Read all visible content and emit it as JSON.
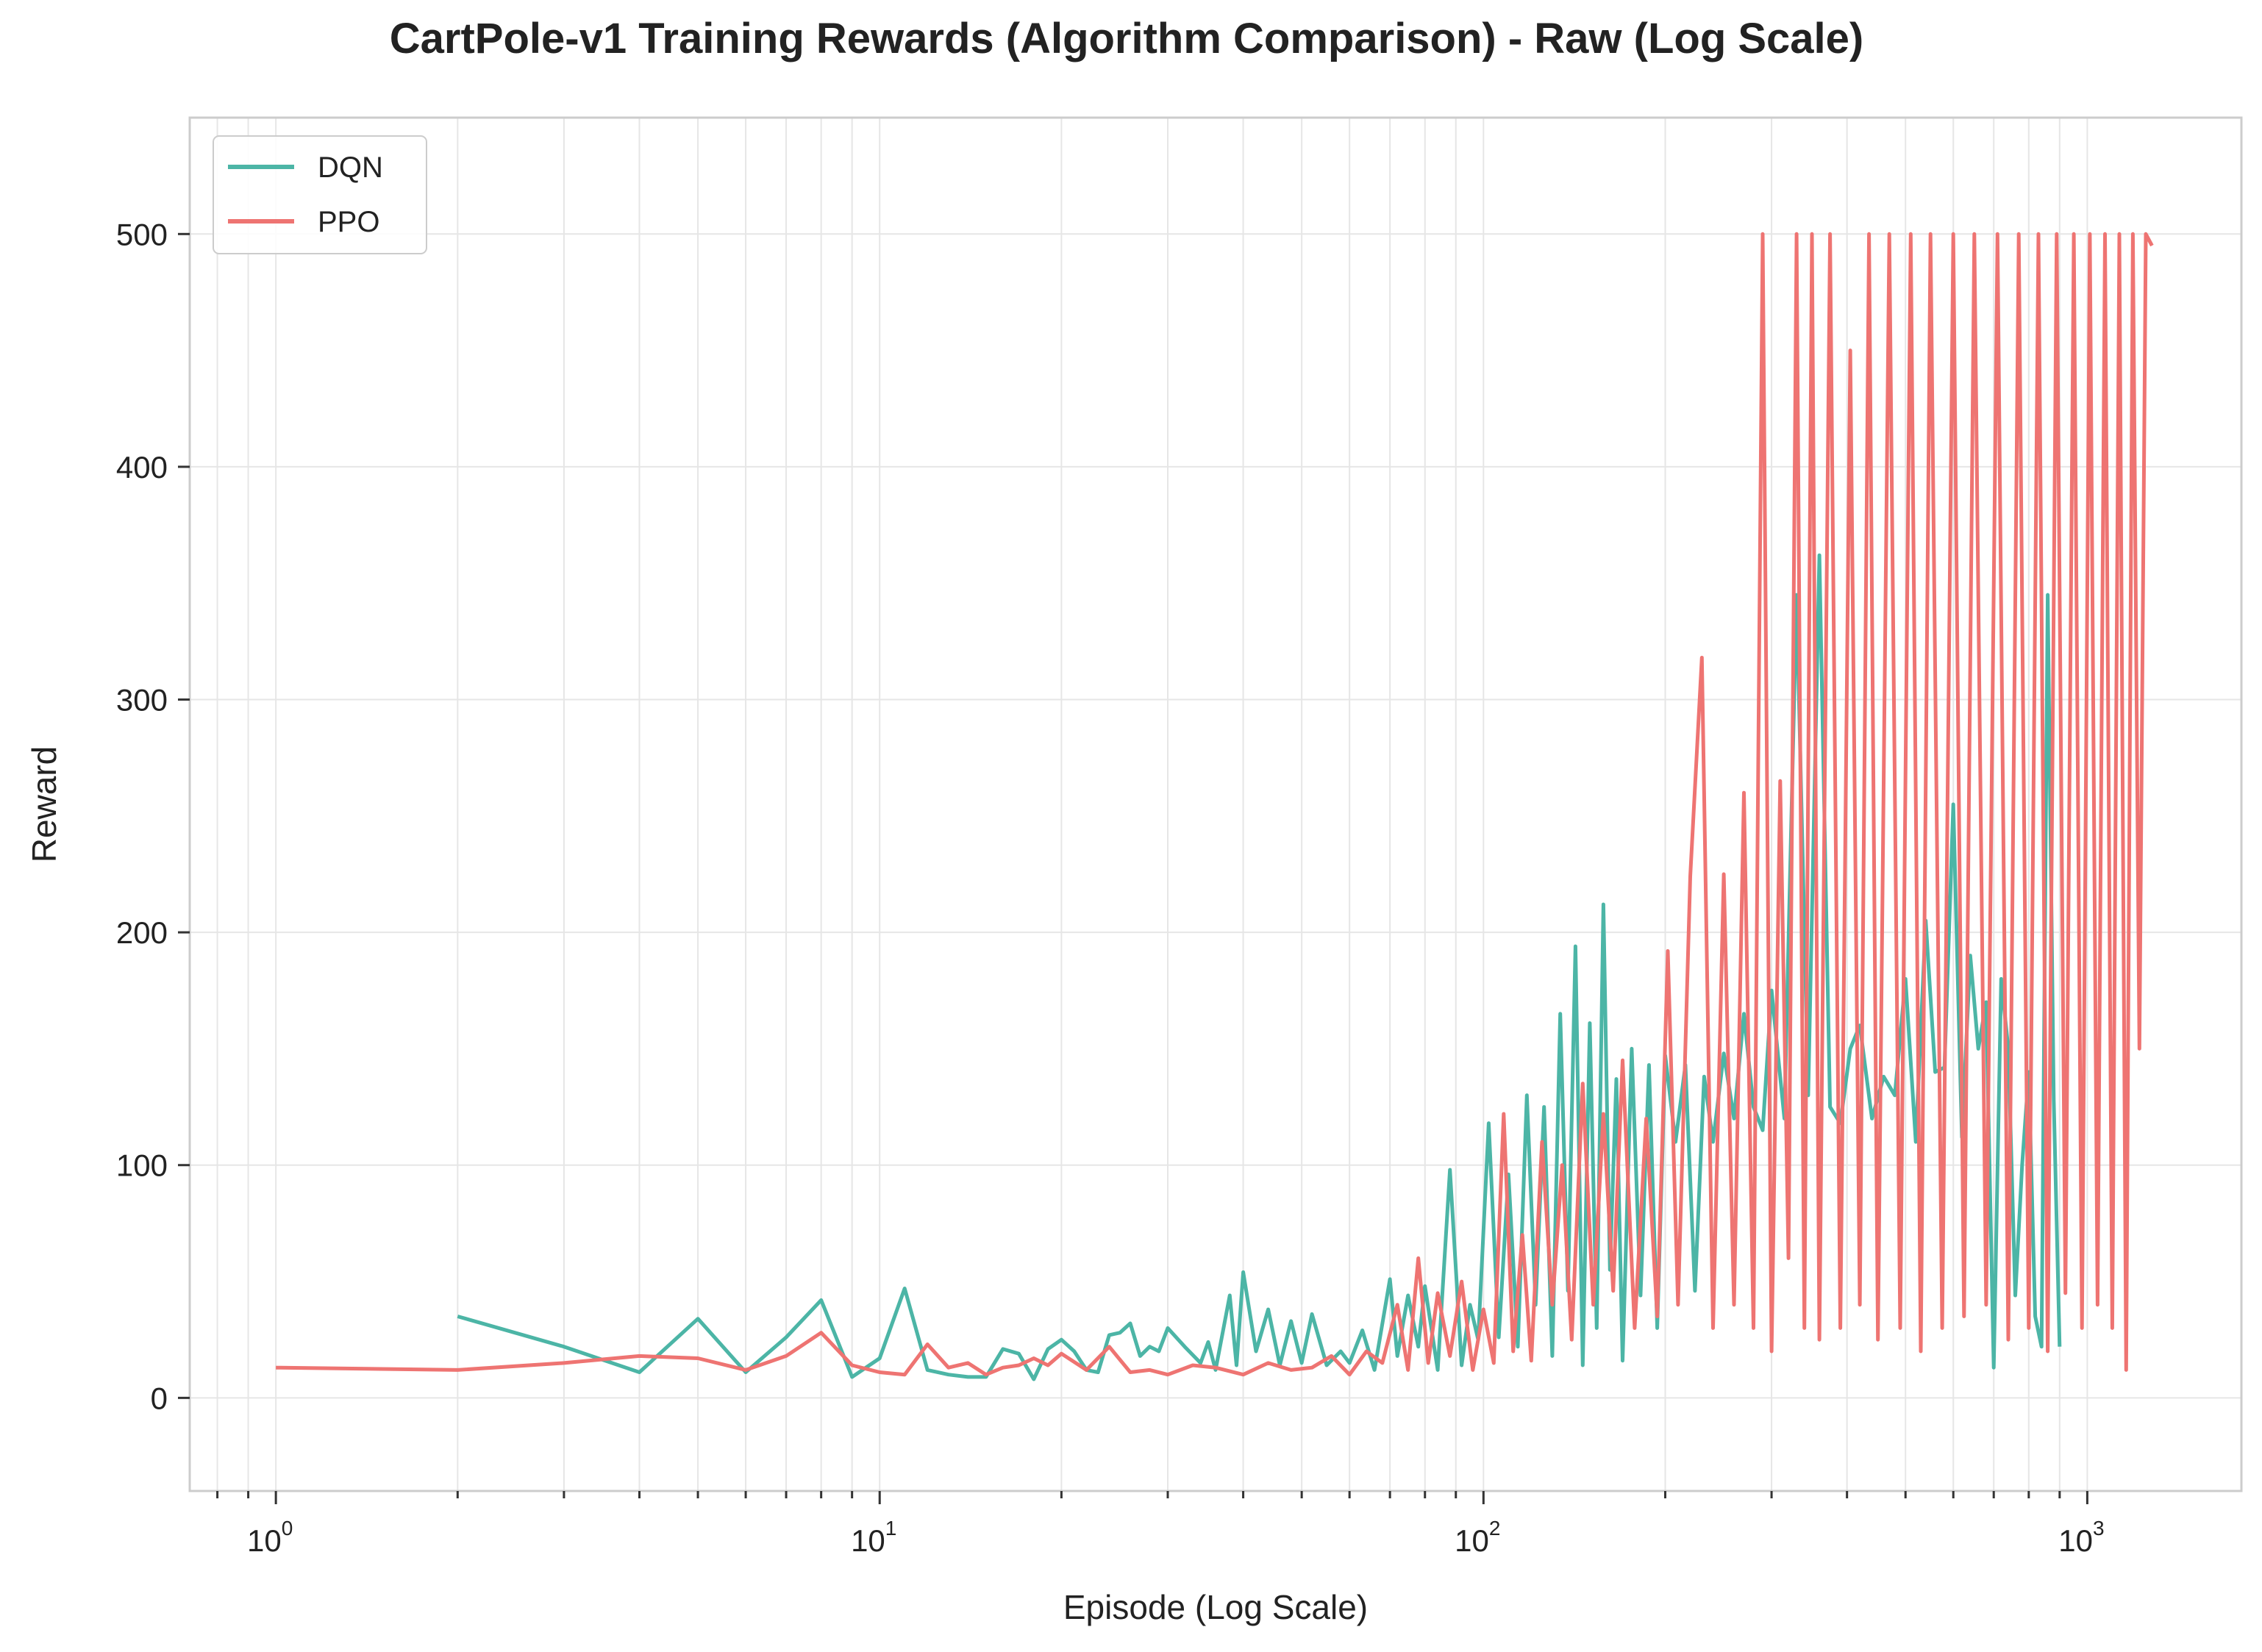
{
  "chart_data": {
    "type": "line",
    "title": "CartPole-v1 Training Rewards (Algorithm Comparison) - Raw (Log Scale)",
    "xlabel": "Episode (Log Scale)",
    "ylabel": "Reward",
    "xscale": "log",
    "xlim": [
      0.72,
      1800
    ],
    "ylim": [
      -40,
      550
    ],
    "yticks": [
      0,
      100,
      200,
      300,
      400,
      500
    ],
    "xticks": [
      {
        "base": "10",
        "exp": "0",
        "value": 1
      },
      {
        "base": "10",
        "exp": "1",
        "value": 10
      },
      {
        "base": "10",
        "exp": "2",
        "value": 100
      },
      {
        "base": "10",
        "exp": "3",
        "value": 1000
      }
    ],
    "grid": true,
    "legend_position": "top-left",
    "series": [
      {
        "name": "DQN",
        "color": "#4cb5a6",
        "x": [
          2,
          3,
          4,
          5,
          6,
          7,
          8,
          9,
          10,
          11,
          12,
          13,
          14,
          15,
          16,
          17,
          18,
          19,
          20,
          21,
          22,
          23,
          24,
          25,
          26,
          27,
          28,
          29,
          30,
          32,
          34,
          35,
          36,
          38,
          39,
          40,
          42,
          44,
          46,
          48,
          50,
          52,
          55,
          58,
          60,
          63,
          66,
          70,
          72,
          75,
          78,
          80,
          84,
          88,
          92,
          95,
          98,
          102,
          106,
          110,
          114,
          118,
          122,
          126,
          130,
          134,
          138,
          142,
          146,
          150,
          154,
          158,
          162,
          166,
          170,
          176,
          182,
          188,
          194,
          200,
          208,
          216,
          224,
          232,
          240,
          250,
          260,
          270,
          280,
          290,
          300,
          315,
          330,
          345,
          360,
          375,
          390,
          405,
          420,
          440,
          460,
          480,
          500,
          520,
          540,
          560,
          580,
          600,
          620,
          640,
          660,
          680,
          700,
          720,
          740,
          760,
          780,
          800,
          820,
          840,
          860,
          880,
          900
        ],
        "values": [
          35,
          22,
          11,
          34,
          11,
          26,
          42,
          9,
          17,
          47,
          12,
          10,
          9,
          9,
          21,
          19,
          8,
          21,
          25,
          20,
          12,
          11,
          27,
          28,
          32,
          18,
          22,
          20,
          30,
          22,
          15,
          24,
          12,
          44,
          14,
          54,
          20,
          38,
          14,
          33,
          15,
          36,
          14,
          20,
          15,
          29,
          12,
          51,
          18,
          44,
          22,
          48,
          12,
          98,
          14,
          40,
          25,
          118,
          26,
          96,
          22,
          130,
          40,
          125,
          18,
          165,
          46,
          194,
          14,
          161,
          30,
          212,
          55,
          137,
          16,
          150,
          44,
          143,
          30,
          147,
          110,
          143,
          46,
          138,
          110,
          148,
          120,
          165,
          125,
          115,
          175,
          120,
          345,
          130,
          362,
          125,
          118,
          150,
          160,
          120,
          138,
          130,
          180,
          110,
          205,
          140,
          142,
          255,
          112,
          190,
          150,
          170,
          13,
          180,
          150,
          44,
          100,
          140,
          35,
          22,
          345,
          128,
          22
        ]
      },
      {
        "name": "PPO",
        "color": "#ee7472",
        "x": [
          1,
          2,
          3,
          4,
          5,
          6,
          7,
          8,
          9,
          10,
          11,
          12,
          13,
          14,
          15,
          16,
          17,
          18,
          19,
          20,
          22,
          24,
          26,
          28,
          30,
          33,
          36,
          40,
          44,
          48,
          52,
          56,
          60,
          64,
          68,
          72,
          75,
          78,
          81,
          84,
          88,
          92,
          96,
          100,
          104,
          108,
          112,
          116,
          120,
          125,
          130,
          135,
          140,
          146,
          152,
          158,
          164,
          170,
          178,
          186,
          194,
          202,
          210,
          220,
          230,
          240,
          250,
          260,
          270,
          280,
          290,
          300,
          310,
          320,
          330,
          340,
          350,
          360,
          375,
          390,
          405,
          420,
          435,
          450,
          470,
          490,
          510,
          530,
          550,
          575,
          600,
          625,
          650,
          680,
          710,
          740,
          770,
          800,
          830,
          860,
          890,
          920,
          950,
          980,
          1010,
          1040,
          1070,
          1100,
          1130,
          1160,
          1190,
          1220,
          1250,
          1280
        ],
        "values": [
          13,
          12,
          15,
          18,
          17,
          12,
          18,
          28,
          14,
          11,
          10,
          23,
          13,
          15,
          10,
          13,
          14,
          17,
          14,
          19,
          12,
          22,
          11,
          12,
          10,
          14,
          13,
          10,
          15,
          12,
          13,
          18,
          10,
          20,
          15,
          40,
          12,
          60,
          15,
          45,
          18,
          50,
          12,
          38,
          15,
          122,
          20,
          70,
          16,
          110,
          40,
          100,
          25,
          135,
          40,
          122,
          46,
          145,
          30,
          120,
          35,
          192,
          40,
          224,
          318,
          30,
          225,
          40,
          260,
          30,
          500,
          20,
          265,
          60,
          500,
          30,
          500,
          25,
          500,
          30,
          450,
          40,
          500,
          25,
          500,
          30,
          500,
          20,
          500,
          30,
          500,
          35,
          500,
          40,
          500,
          25,
          500,
          30,
          500,
          20,
          500,
          45,
          500,
          30,
          500,
          40,
          500,
          30,
          500,
          12,
          500,
          150,
          500,
          495
        ]
      }
    ]
  }
}
